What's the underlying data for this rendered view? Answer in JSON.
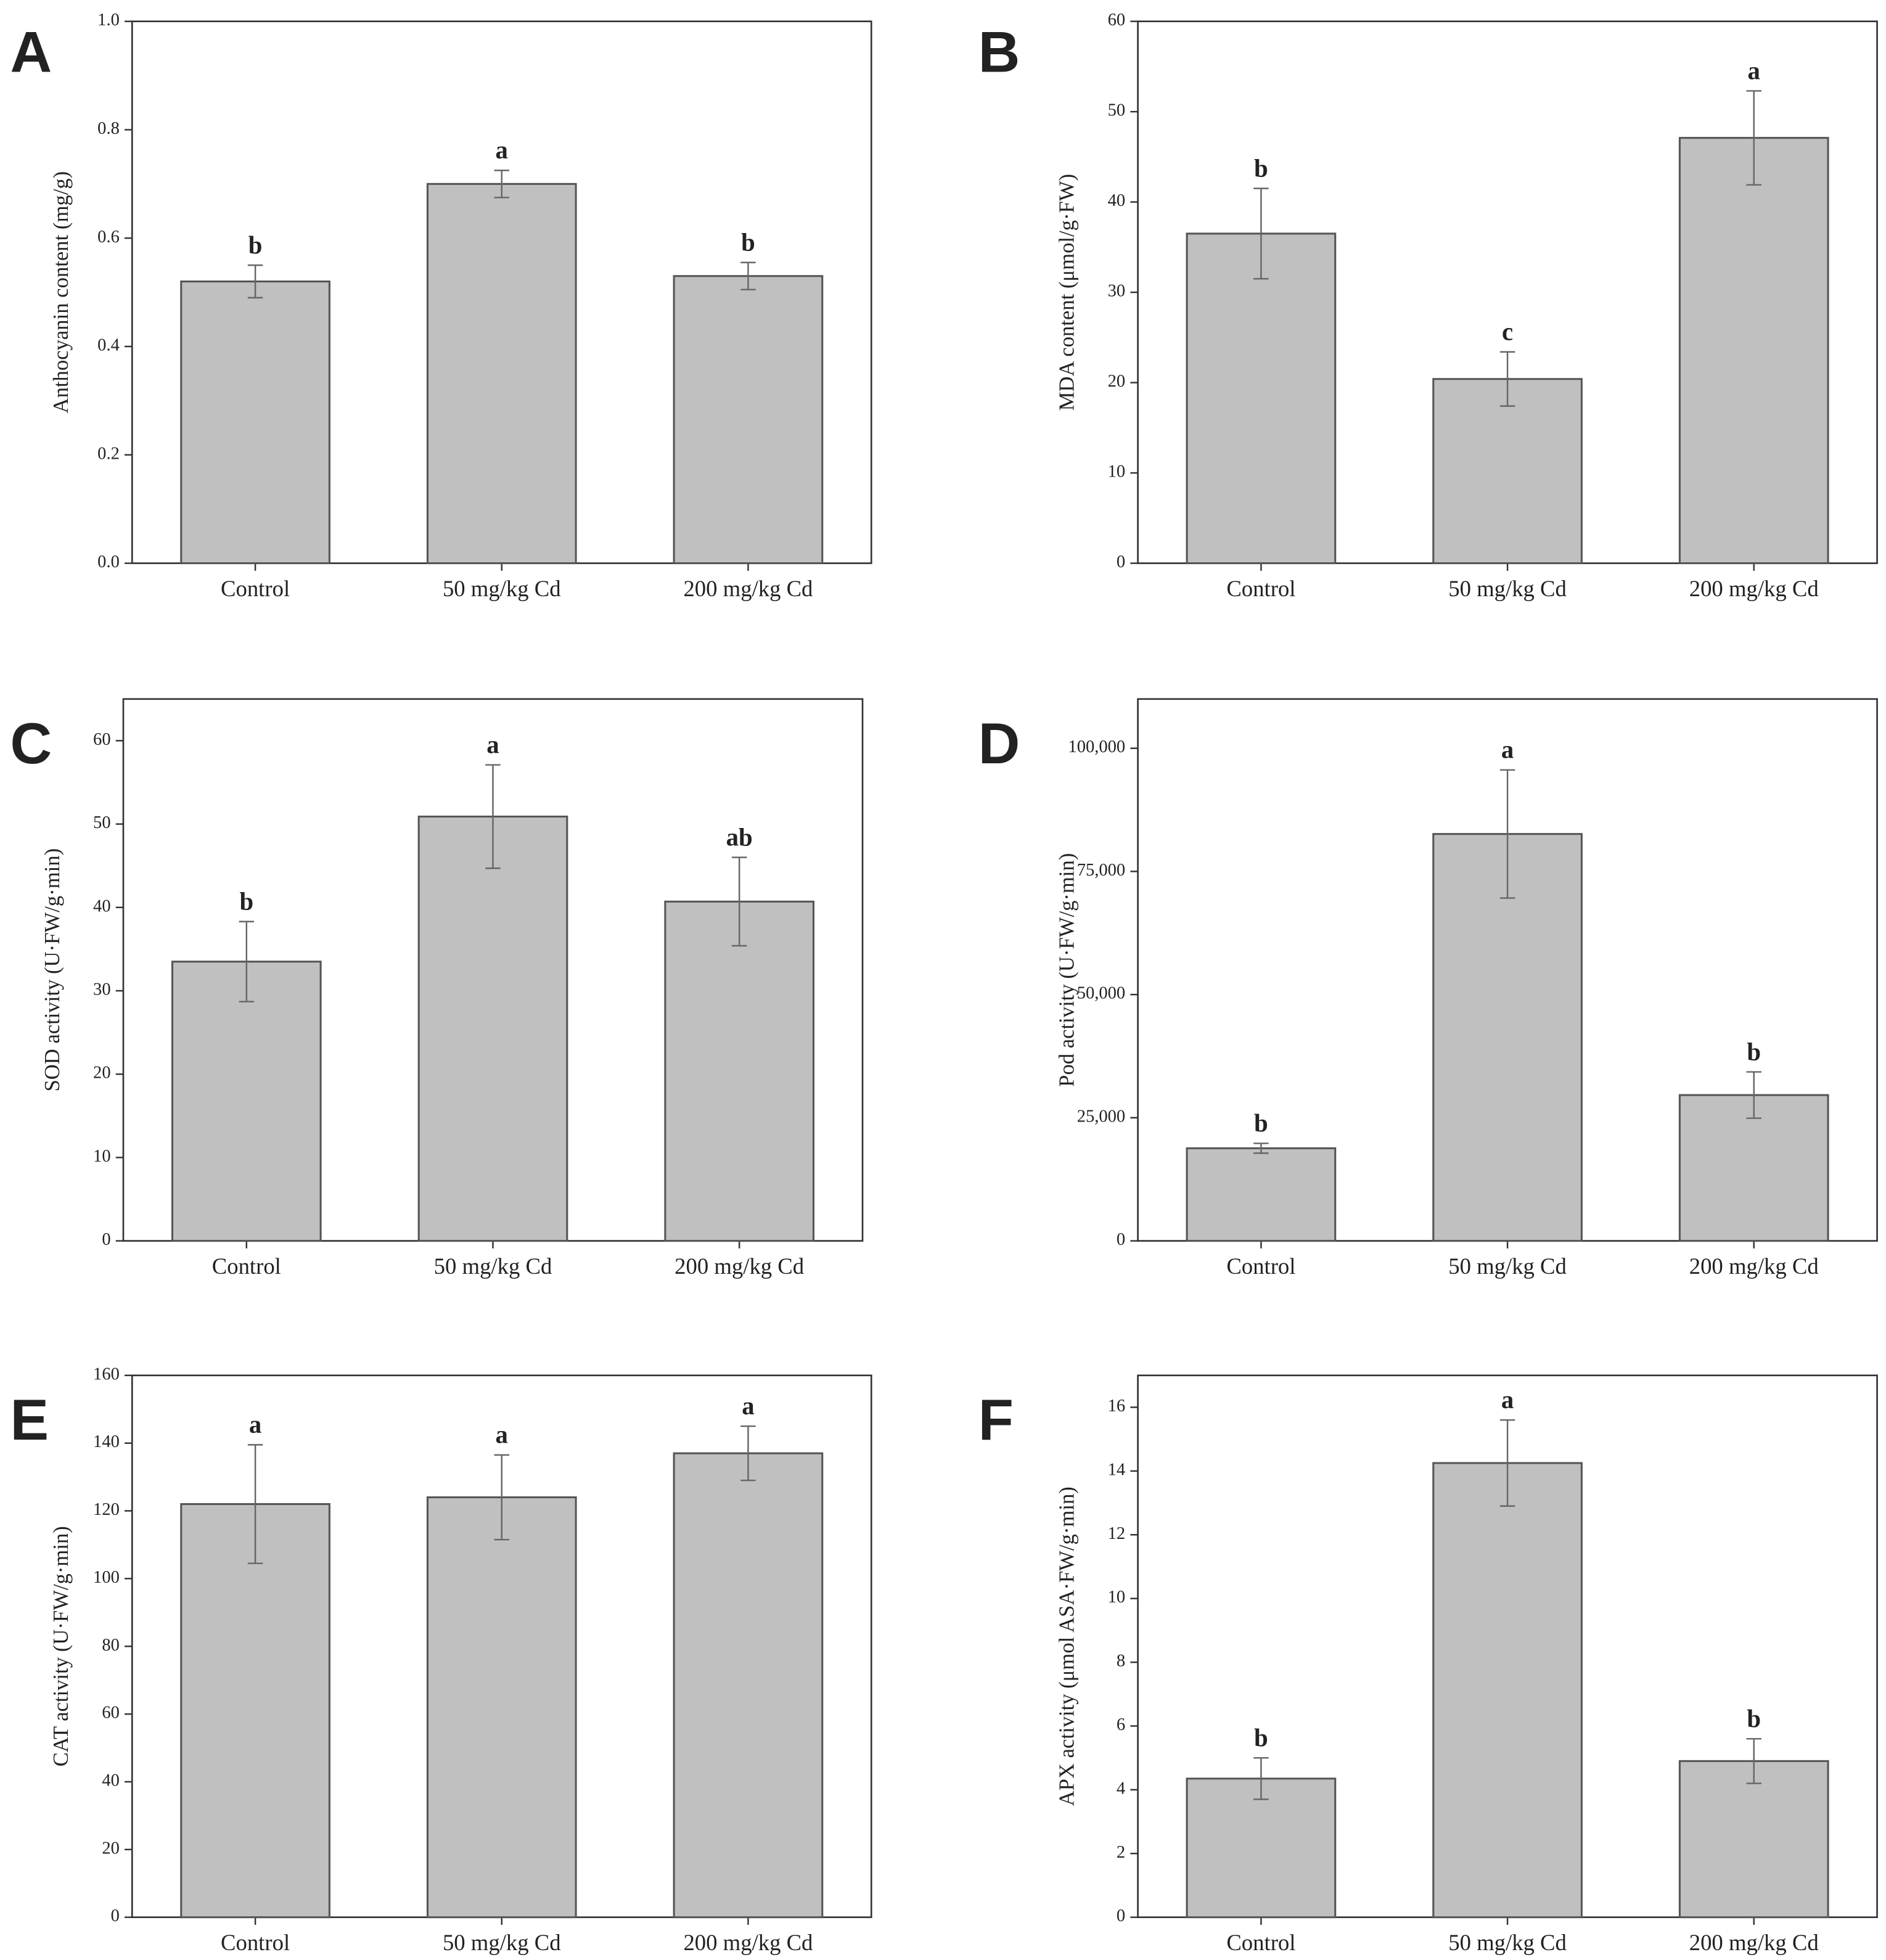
{
  "chart_data": [
    {
      "type": "bar",
      "panel_label": "A",
      "ylabel": "Anthocyanin content (mg/g)",
      "categories": [
        "Control",
        "50 mg/kg Cd",
        "200 mg/kg Cd"
      ],
      "values": [
        0.52,
        0.7,
        0.53
      ],
      "errors": [
        0.03,
        0.025,
        0.025
      ],
      "letters": [
        "b",
        "a",
        "b"
      ],
      "color": "#c0c0c0",
      "ylim": [
        0,
        1
      ],
      "yticks": [
        {
          "value": 0,
          "label": "0.0"
        },
        0.2,
        0.4,
        0.6,
        0.8,
        {
          "value": 1,
          "label": "1.0"
        }
      ]
    },
    {
      "type": "bar",
      "panel_label": "B",
      "ylabel": "MDA content (μmol/g·FW)",
      "categories": [
        "Control",
        "50 mg/kg Cd",
        "200 mg/kg Cd"
      ],
      "values": [
        36.5,
        20.4,
        47.1
      ],
      "errors": [
        5,
        3,
        5.2
      ],
      "letters": [
        "b",
        "c",
        "a"
      ],
      "color": "#c0c0c0",
      "ylim": [
        0,
        60
      ],
      "yticks": [
        0,
        10,
        20,
        30,
        40,
        50,
        60
      ]
    },
    {
      "type": "bar",
      "panel_label": "C",
      "ylabel": "SOD activity (U·FW/g·min)",
      "categories": [
        "Control",
        "50 mg/kg Cd",
        "200 mg/kg Cd"
      ],
      "values": [
        33.5,
        50.9,
        40.7
      ],
      "errors": [
        4.8,
        6.2,
        5.3
      ],
      "letters": [
        "b",
        "a",
        "ab"
      ],
      "color": "#c0c0c0",
      "ylim": [
        0,
        65
      ],
      "yticks": [
        0,
        10,
        20,
        30,
        40,
        50,
        60
      ]
    },
    {
      "type": "bar",
      "panel_label": "D",
      "ylabel": "Pod activity (U·FW/g·min)",
      "categories": [
        "Control",
        "50 mg/kg Cd",
        "200 mg/kg Cd"
      ],
      "values": [
        18800,
        82600,
        29600
      ],
      "errors": [
        1000,
        13000,
        4700
      ],
      "letters": [
        "b",
        "a",
        "b"
      ],
      "color": "#c0c0c0",
      "ylim": [
        0,
        110000
      ],
      "yticks": [
        0,
        {
          "value": 25000,
          "label": "25,000"
        },
        {
          "value": 50000,
          "label": "50,000"
        },
        {
          "value": 75000,
          "label": "75,000"
        },
        {
          "value": 100000,
          "label": "100,000"
        }
      ]
    },
    {
      "type": "bar",
      "panel_label": "E",
      "ylabel": "CAT activity (U·FW/g·min)",
      "categories": [
        "Control",
        "50 mg/kg Cd",
        "200 mg/kg Cd"
      ],
      "values": [
        122,
        124,
        137
      ],
      "errors": [
        17.5,
        12.5,
        8
      ],
      "letters": [
        "a",
        "a",
        "a"
      ],
      "color": "#c0c0c0",
      "ylim": [
        0,
        160
      ],
      "yticks": [
        0,
        20,
        40,
        60,
        80,
        100,
        120,
        140,
        160
      ]
    },
    {
      "type": "bar",
      "panel_label": "F",
      "ylabel": "APX activity (μmol ASA·FW/g·min)",
      "categories": [
        "Control",
        "50 mg/kg Cd",
        "200 mg/kg Cd"
      ],
      "values": [
        4.35,
        14.25,
        4.9
      ],
      "errors": [
        0.65,
        1.35,
        0.7
      ],
      "letters": [
        "b",
        "a",
        "b"
      ],
      "color": "#c0c0c0",
      "ylim": [
        0,
        17
      ],
      "yticks": [
        0,
        2,
        4,
        6,
        8,
        10,
        12,
        14,
        16
      ]
    }
  ]
}
